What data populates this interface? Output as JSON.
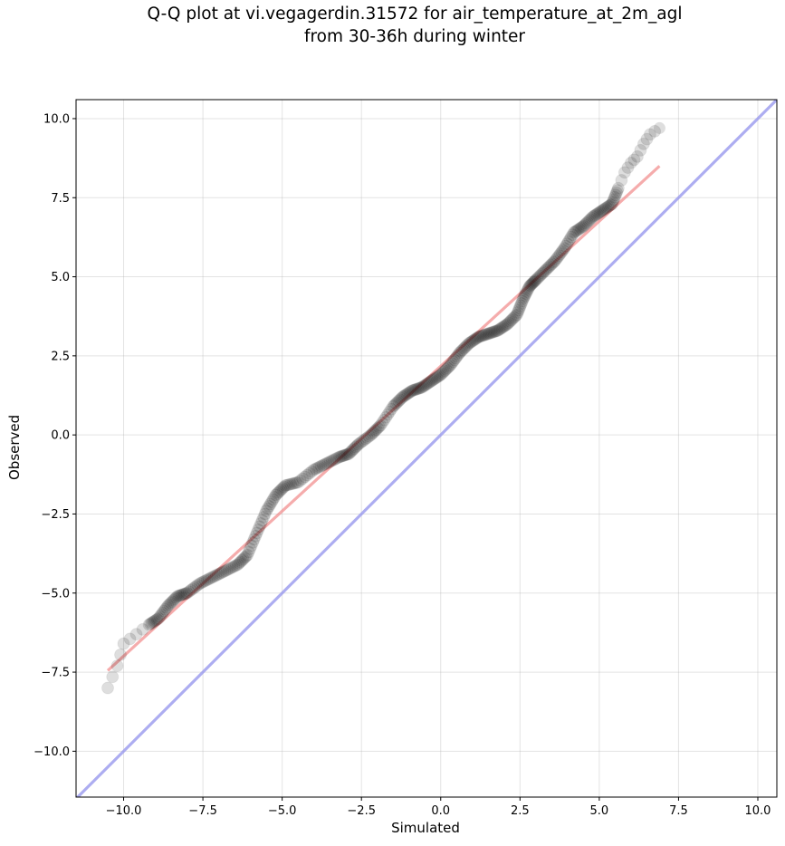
{
  "chart_data": {
    "type": "scatter",
    "title_lines": [
      "Q-Q plot at vi.vegagerdin.31572 for air_temperature_at_2m_agl",
      "from 30-36h during winter"
    ],
    "xlabel": "Simulated",
    "ylabel": "Observed",
    "xlim": [
      -11.5,
      10.6
    ],
    "ylim": [
      -11.45,
      10.6
    ],
    "xticks": [
      -10.0,
      -7.5,
      -5.0,
      -2.5,
      0.0,
      2.5,
      5.0,
      7.5,
      10.0
    ],
    "yticks": [
      -10.0,
      -7.5,
      -5.0,
      -2.5,
      0.0,
      2.5,
      5.0,
      7.5,
      10.0
    ],
    "xtick_labels": [
      "−10.0",
      "−7.5",
      "−5.0",
      "−2.5",
      "0.0",
      "2.5",
      "5.0",
      "7.5",
      "10.0"
    ],
    "ytick_labels": [
      "−10.0",
      "−7.5",
      "−5.0",
      "−2.5",
      "0.0",
      "2.5",
      "5.0",
      "7.5",
      "10.0"
    ],
    "grid": true,
    "quantile_curve": {
      "x": [
        -10.5,
        -10.2,
        -10.0,
        -9.6,
        -9.2,
        -8.9,
        -8.6,
        -8.3,
        -8.0,
        -7.6,
        -7.2,
        -6.8,
        -6.4,
        -6.1,
        -5.8,
        -5.5,
        -5.2,
        -4.9,
        -4.5,
        -4.0,
        -3.6,
        -3.2,
        -2.9,
        -2.6,
        -2.2,
        -1.9,
        -1.5,
        -1.2,
        -0.9,
        -0.6,
        -0.3,
        0.0,
        0.3,
        0.6,
        0.9,
        1.2,
        1.5,
        1.8,
        2.1,
        2.4,
        2.6,
        2.8,
        3.0,
        3.3,
        3.6,
        3.9,
        4.2,
        4.5,
        4.8,
        5.1,
        5.4,
        5.6,
        5.8,
        6.0,
        6.2,
        6.4,
        6.6,
        6.9
      ],
      "y": [
        -8.0,
        -7.3,
        -6.6,
        -6.3,
        -6.0,
        -5.8,
        -5.4,
        -5.1,
        -5.0,
        -4.7,
        -4.5,
        -4.3,
        -4.1,
        -3.8,
        -3.1,
        -2.4,
        -1.9,
        -1.6,
        -1.5,
        -1.1,
        -0.9,
        -0.7,
        -0.6,
        -0.3,
        0.0,
        0.3,
        0.9,
        1.2,
        1.4,
        1.5,
        1.7,
        1.9,
        2.2,
        2.6,
        2.9,
        3.1,
        3.2,
        3.3,
        3.5,
        3.8,
        4.3,
        4.7,
        4.9,
        5.2,
        5.5,
        5.9,
        6.4,
        6.6,
        6.9,
        7.1,
        7.3,
        7.8,
        8.3,
        8.6,
        8.8,
        9.2,
        9.5,
        9.7
      ]
    },
    "fit_line": {
      "x": [
        -10.5,
        6.9
      ],
      "y": [
        -7.45,
        8.5
      ],
      "color": "#f4a0a0"
    },
    "identity_line": {
      "color": "#a8a8f4"
    },
    "point_color": "#000000",
    "fit_color": "#f08080",
    "identity_color": "#9999ee"
  }
}
